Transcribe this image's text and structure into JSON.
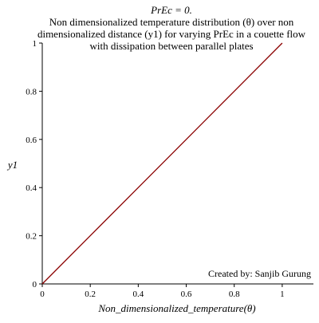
{
  "chart_data": {
    "type": "line",
    "title_parameter": "PrEc = 0.",
    "title_lines": [
      "Non dimensionalized temperature distribution (θ) over non",
      "dimensionalized distance (y1) for varying PrEc in a couette flow",
      "with dissipation between parallel plates"
    ],
    "xlabel": "Non_dimensionalized_temperature(θ)",
    "ylabel": "y1",
    "xlim": [
      0,
      1.13
    ],
    "ylim": [
      0,
      1
    ],
    "x_ticks": [
      0,
      0.2,
      0.4,
      0.6,
      0.8,
      1
    ],
    "y_ticks": [
      0,
      0.2,
      0.4,
      0.6,
      0.8,
      1
    ],
    "x_tick_labels": [
      "0",
      "0.2",
      "0.4",
      "0.6",
      "0.8",
      "1"
    ],
    "y_tick_labels": [
      "0",
      "0.2",
      "0.4",
      "0.6",
      "0.8",
      "1"
    ],
    "grid": false,
    "series": [
      {
        "color": "#8b0000",
        "x": [
          0,
          0.2,
          0.4,
          0.6,
          0.8,
          1
        ],
        "y": [
          0,
          0.2,
          0.4,
          0.6,
          0.8,
          1
        ]
      }
    ],
    "annotation": "Created by: Sanjib Gurung"
  }
}
